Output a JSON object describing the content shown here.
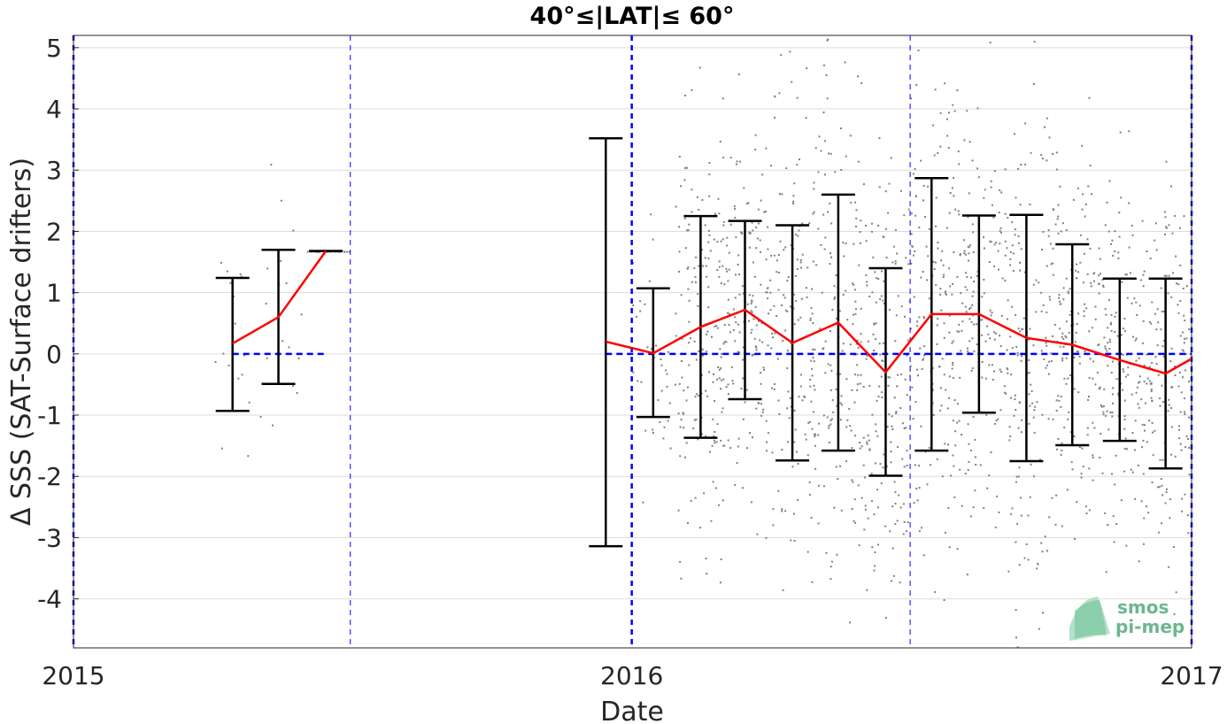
{
  "chart_data": {
    "type": "scatter",
    "title": "40°≤|LAT|≤ 60°",
    "xlabel": "Date",
    "ylabel": "Δ SSS (SAT-Surface drifters)",
    "xlim": [
      "2015-01-01",
      "2017-01-01"
    ],
    "ylim": [
      -4.8,
      5.2
    ],
    "x_ticks": [
      "2015-01-01",
      "2016-01-01",
      "2017-01-01"
    ],
    "x_tick_labels": [
      "2015",
      "2016",
      "2017"
    ],
    "y_ticks": [
      -4,
      -3,
      -2,
      -1,
      0,
      1,
      2,
      3,
      4,
      5
    ],
    "y_tick_labels": [
      "-4",
      "-3",
      "-2",
      "-1",
      "0",
      "1",
      "2",
      "3",
      "4",
      "5"
    ],
    "grid": true,
    "vertical_reference_lines": {
      "thick": [
        "2015-01-01",
        "2016-01-01",
        "2017-01-01"
      ],
      "thin": [
        "2015-07-01",
        "2016-07-01"
      ]
    },
    "zero_line_segments": [
      [
        "2015-04-15",
        "2015-06-15"
      ],
      [
        "2015-12-15",
        "2017-01-01"
      ]
    ],
    "monthly_stats": [
      {
        "date": "2015-04-15",
        "mean": 0.17,
        "upper": 1.24,
        "lower": -0.93
      },
      {
        "date": "2015-05-15",
        "mean": 0.6,
        "upper": 1.7,
        "lower": -0.49
      },
      {
        "date": "2015-06-15",
        "mean": 1.68,
        "upper": 1.68,
        "lower": 1.68
      },
      {
        "date": "2015-12-15",
        "mean": 0.2,
        "upper": 3.52,
        "lower": -3.14
      },
      {
        "date": "2016-01-15",
        "mean": 0.01,
        "upper": 1.07,
        "lower": -1.03
      },
      {
        "date": "2016-02-15",
        "mean": 0.44,
        "upper": 2.25,
        "lower": -1.37
      },
      {
        "date": "2016-03-15",
        "mean": 0.72,
        "upper": 2.17,
        "lower": -0.74
      },
      {
        "date": "2016-04-15",
        "mean": 0.18,
        "upper": 2.1,
        "lower": -1.74
      },
      {
        "date": "2016-05-15",
        "mean": 0.51,
        "upper": 2.6,
        "lower": -1.58
      },
      {
        "date": "2016-06-15",
        "mean": -0.3,
        "upper": 1.4,
        "lower": -1.99
      },
      {
        "date": "2016-07-15",
        "mean": 0.65,
        "upper": 2.87,
        "lower": -1.58
      },
      {
        "date": "2016-08-15",
        "mean": 0.65,
        "upper": 2.26,
        "lower": -0.96
      },
      {
        "date": "2016-09-15",
        "mean": 0.26,
        "upper": 2.27,
        "lower": -1.75
      },
      {
        "date": "2016-10-15",
        "mean": 0.15,
        "upper": 1.79,
        "lower": -1.49
      },
      {
        "date": "2016-11-15",
        "mean": -0.1,
        "upper": 1.23,
        "lower": -1.42
      },
      {
        "date": "2016-12-15",
        "mean": -0.32,
        "upper": 1.23,
        "lower": -1.87
      },
      {
        "date": "2017-01-01",
        "mean": -0.08
      }
    ],
    "scatter_series": {
      "name": "",
      "color": "#808080",
      "marker": "dot"
    },
    "colors": {
      "mean_line": "#ff0000",
      "error_bars": "#000000",
      "reference_lines": "#0000ff",
      "grid": "#dcdcdc",
      "points": "#808080"
    }
  },
  "watermark": {
    "line1": "smos",
    "line2": "pi-mep"
  }
}
